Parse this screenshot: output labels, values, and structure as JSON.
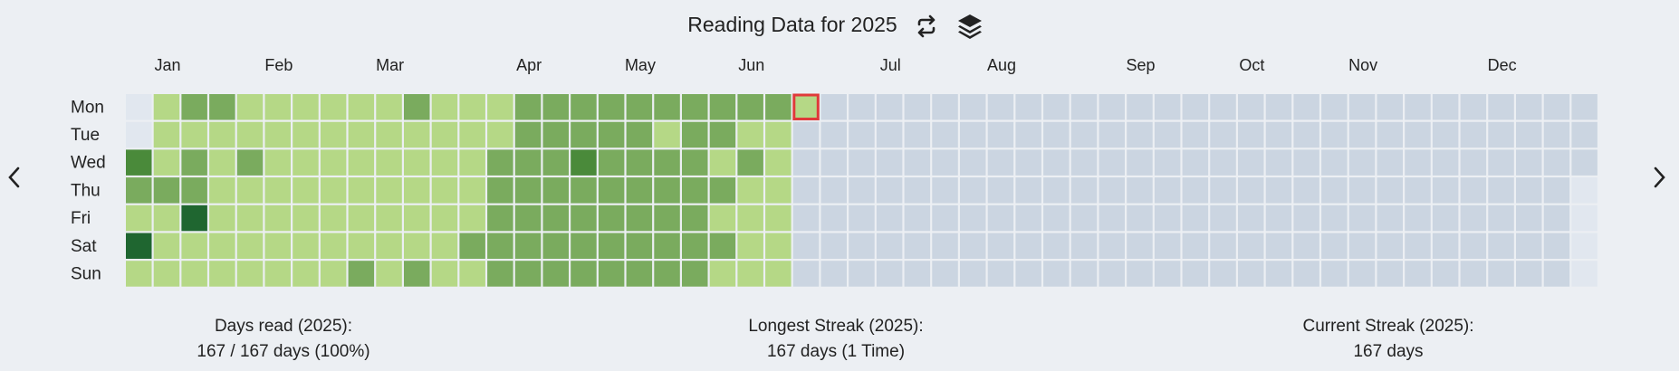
{
  "header": {
    "title": "Reading Data for 2025"
  },
  "calendar": {
    "months": [
      "Jan",
      "Feb",
      "Mar",
      "Apr",
      "May",
      "Jun",
      "Jul",
      "Aug",
      "Sep",
      "Oct",
      "Nov",
      "Dec"
    ],
    "weekdays": [
      "Mon",
      "Tue",
      "Wed",
      "Thu",
      "Fri",
      "Sat",
      "Sun"
    ],
    "colors": [
      "#cbd5e1",
      "#b5d886",
      "#7aab5e",
      "#4a8a3a",
      "#1f6630"
    ],
    "weeks": [
      [
        null,
        null,
        3,
        2,
        1,
        4,
        1
      ],
      [
        1,
        1,
        1,
        2,
        1,
        1,
        1
      ],
      [
        2,
        1,
        2,
        2,
        4,
        1,
        1
      ],
      [
        2,
        1,
        1,
        1,
        1,
        1,
        1
      ],
      [
        1,
        1,
        2,
        1,
        1,
        1,
        1
      ],
      [
        1,
        1,
        1,
        1,
        1,
        1,
        1
      ],
      [
        1,
        1,
        1,
        1,
        1,
        1,
        1
      ],
      [
        1,
        1,
        1,
        1,
        1,
        1,
        1
      ],
      [
        1,
        1,
        1,
        1,
        1,
        1,
        2
      ],
      [
        1,
        1,
        1,
        1,
        1,
        1,
        1
      ],
      [
        2,
        1,
        1,
        1,
        1,
        1,
        2
      ],
      [
        1,
        1,
        1,
        1,
        1,
        1,
        1
      ],
      [
        1,
        1,
        1,
        1,
        1,
        2,
        1
      ],
      [
        1,
        1,
        2,
        2,
        2,
        2,
        2
      ],
      [
        2,
        2,
        2,
        2,
        2,
        2,
        2
      ],
      [
        2,
        2,
        2,
        2,
        2,
        2,
        2
      ],
      [
        2,
        2,
        3,
        2,
        2,
        2,
        2
      ],
      [
        2,
        2,
        2,
        2,
        2,
        2,
        2
      ],
      [
        2,
        2,
        2,
        2,
        2,
        2,
        2
      ],
      [
        2,
        1,
        2,
        2,
        2,
        2,
        2
      ],
      [
        2,
        2,
        2,
        2,
        2,
        2,
        2
      ],
      [
        2,
        2,
        1,
        2,
        1,
        2,
        1
      ],
      [
        2,
        1,
        2,
        1,
        1,
        1,
        1
      ],
      [
        2,
        1,
        1,
        1,
        1,
        1,
        1
      ],
      [
        1,
        0,
        0,
        0,
        0,
        0,
        0
      ],
      [
        0,
        0,
        0,
        0,
        0,
        0,
        0
      ],
      [
        0,
        0,
        0,
        0,
        0,
        0,
        0
      ],
      [
        0,
        0,
        0,
        0,
        0,
        0,
        0
      ],
      [
        0,
        0,
        0,
        0,
        0,
        0,
        0
      ],
      [
        0,
        0,
        0,
        0,
        0,
        0,
        0
      ],
      [
        0,
        0,
        0,
        0,
        0,
        0,
        0
      ],
      [
        0,
        0,
        0,
        0,
        0,
        0,
        0
      ],
      [
        0,
        0,
        0,
        0,
        0,
        0,
        0
      ],
      [
        0,
        0,
        0,
        0,
        0,
        0,
        0
      ],
      [
        0,
        0,
        0,
        0,
        0,
        0,
        0
      ],
      [
        0,
        0,
        0,
        0,
        0,
        0,
        0
      ],
      [
        0,
        0,
        0,
        0,
        0,
        0,
        0
      ],
      [
        0,
        0,
        0,
        0,
        0,
        0,
        0
      ],
      [
        0,
        0,
        0,
        0,
        0,
        0,
        0
      ],
      [
        0,
        0,
        0,
        0,
        0,
        0,
        0
      ],
      [
        0,
        0,
        0,
        0,
        0,
        0,
        0
      ],
      [
        0,
        0,
        0,
        0,
        0,
        0,
        0
      ],
      [
        0,
        0,
        0,
        0,
        0,
        0,
        0
      ],
      [
        0,
        0,
        0,
        0,
        0,
        0,
        0
      ],
      [
        0,
        0,
        0,
        0,
        0,
        0,
        0
      ],
      [
        0,
        0,
        0,
        0,
        0,
        0,
        0
      ],
      [
        0,
        0,
        0,
        0,
        0,
        0,
        0
      ],
      [
        0,
        0,
        0,
        0,
        0,
        0,
        0
      ],
      [
        0,
        0,
        0,
        0,
        0,
        0,
        0
      ],
      [
        0,
        0,
        0,
        0,
        0,
        0,
        0
      ],
      [
        0,
        0,
        0,
        0,
        0,
        0,
        0
      ],
      [
        0,
        0,
        0,
        0,
        0,
        0,
        0
      ],
      [
        0,
        0,
        0,
        null,
        null,
        null,
        null
      ]
    ]
  },
  "stats": [
    {
      "label": "Days read (2025):",
      "value": "167 / 167 days (100%)"
    },
    {
      "label": "Longest Streak (2025):",
      "value": "167 days (1 Time)"
    },
    {
      "label": "Current Streak (2025):",
      "value": "167 days"
    }
  ]
}
